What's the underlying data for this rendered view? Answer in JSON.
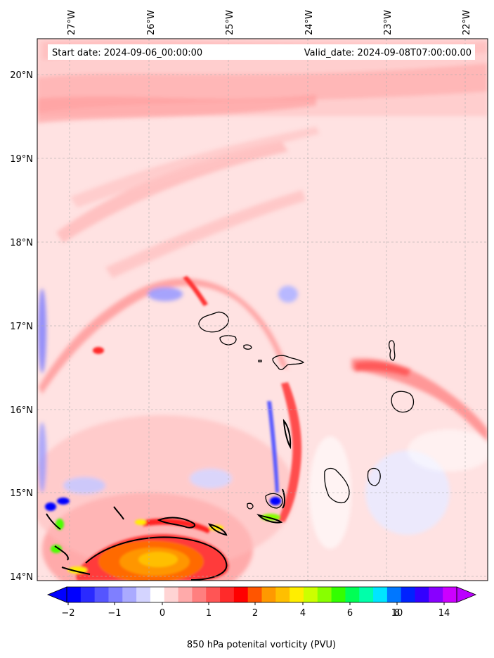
{
  "header": {
    "start_label": "Start date: 2024-09-06_00:00:00",
    "valid_label": "Valid_date: 2024-09-08T07:00:00.00"
  },
  "axes": {
    "lon_ticks": [
      "27°W",
      "26°W",
      "25°W",
      "24°W",
      "23°W",
      "22°W"
    ],
    "lat_ticks": [
      "20°N",
      "19°N",
      "18°N",
      "17°N",
      "16°N",
      "15°N",
      "14°N"
    ]
  },
  "colorbar": {
    "title": "850 hPa potenital vorticity (PVU)",
    "tick_labels": [
      "−2",
      "−1",
      "0",
      "1",
      "2",
      "4",
      "6",
      "8",
      "10",
      "14"
    ],
    "colors": [
      "#0000ff",
      "#2a2aff",
      "#5555ff",
      "#7f7fff",
      "#aaaaff",
      "#d4d4ff",
      "#ffffff",
      "#ffd4d4",
      "#ffaaaa",
      "#ff7f7f",
      "#ff5555",
      "#ff2a2a",
      "#ff0000",
      "#ff5500",
      "#ff9900",
      "#ffbf00",
      "#ffee00",
      "#ccff00",
      "#88ff00",
      "#33ff00",
      "#00ff55",
      "#00ffaa",
      "#00e5ff",
      "#0077ff",
      "#0022ff",
      "#3300ff",
      "#8800ff",
      "#cc00ff"
    ]
  }
}
